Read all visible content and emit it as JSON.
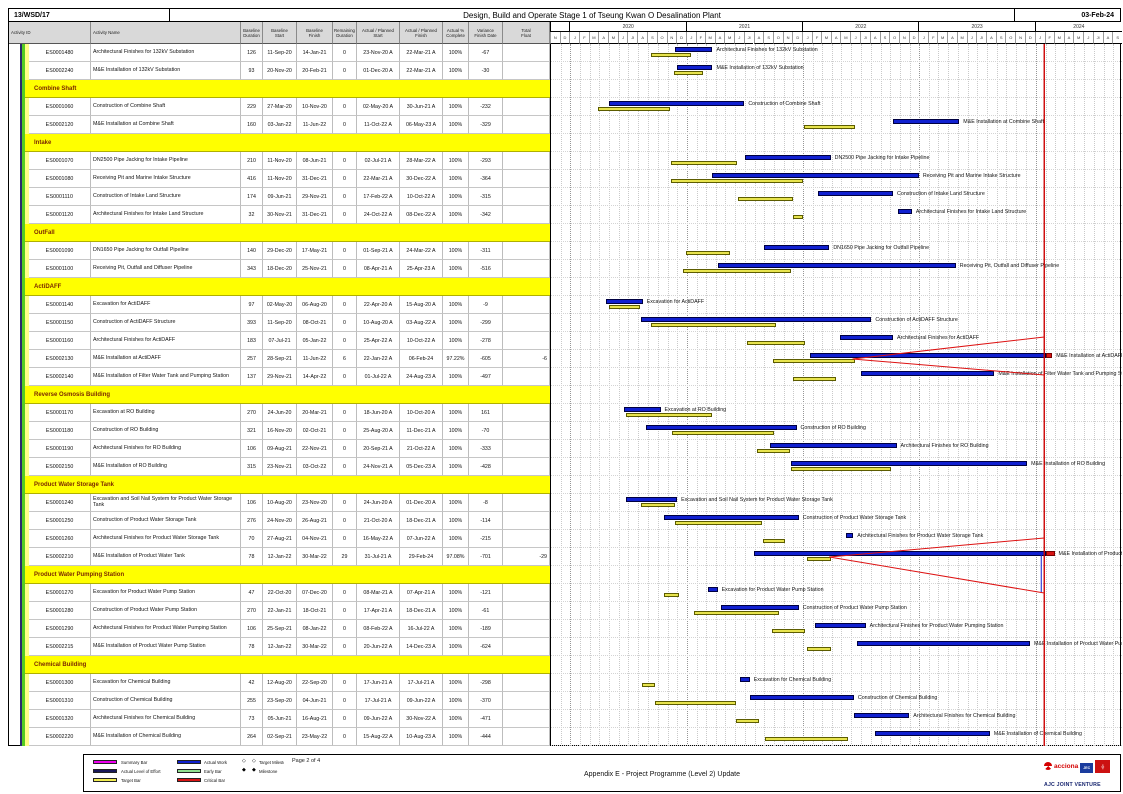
{
  "header": {
    "doc_no": "13/WSD/17",
    "title": "Design, Build and Operate Stage 1 of Tseung Kwan O Desalination Plant",
    "date": "03-Feb-24"
  },
  "columns": [
    {
      "key": "id",
      "label": "Activity ID"
    },
    {
      "key": "name",
      "label": "Activity Name"
    },
    {
      "key": "bl_dur",
      "label": "Baseline\nDuration"
    },
    {
      "key": "bl_start",
      "label": "Baseline\nStart"
    },
    {
      "key": "bl_finish",
      "label": "Baseline\nFinish"
    },
    {
      "key": "rem_dur",
      "label": "Remaining\nDuration"
    },
    {
      "key": "act_start",
      "label": "Actual / Planned\nStart"
    },
    {
      "key": "act_finish",
      "label": "Actual / Planned\nFinish"
    },
    {
      "key": "pct",
      "label": "Actual %\nComplete"
    },
    {
      "key": "variance",
      "label": "Variance\nFinish Date"
    },
    {
      "key": "total_float",
      "label": "Total\nFloat"
    }
  ],
  "sections": [
    {
      "name": "",
      "activities": [
        {
          "id": "ES0001480",
          "name": "Architectural Finishes for 132kV Substation",
          "bl_dur": "126",
          "bl_start": "11-Sep-20",
          "bl_finish": "14-Jan-21",
          "rem_dur": "0",
          "act_start": "23-Nov-20 A",
          "act_finish": "22-Mar-21 A",
          "pct": "100%",
          "variance": "-67",
          "total_float": ""
        },
        {
          "id": "ES0002240",
          "name": "M&E Installation of 132kV Substation",
          "bl_dur": "93",
          "bl_start": "20-Nov-20",
          "bl_finish": "20-Feb-21",
          "rem_dur": "0",
          "act_start": "01-Dec-20 A",
          "act_finish": "22-Mar-21 A",
          "pct": "100%",
          "variance": "-30",
          "total_float": ""
        }
      ]
    },
    {
      "name": "Combine Shaft",
      "activities": [
        {
          "id": "ES0001060",
          "name": "Construction of Combine Shaft",
          "bl_dur": "229",
          "bl_start": "27-Mar-20",
          "bl_finish": "10-Nov-20",
          "rem_dur": "0",
          "act_start": "02-May-20 A",
          "act_finish": "30-Jun-21 A",
          "pct": "100%",
          "variance": "-232",
          "total_float": ""
        },
        {
          "id": "ES0002120",
          "name": "M&E Installation at Combine Shaft",
          "bl_dur": "160",
          "bl_start": "03-Jan-22",
          "bl_finish": "11-Jun-22",
          "rem_dur": "0",
          "act_start": "11-Oct-22 A",
          "act_finish": "06-May-23 A",
          "pct": "100%",
          "variance": "-329",
          "total_float": ""
        }
      ]
    },
    {
      "name": "Intake",
      "activities": [
        {
          "id": "ES0001070",
          "name": "DN2500 Pipe Jacking for Intake Pipeline",
          "bl_dur": "210",
          "bl_start": "11-Nov-20",
          "bl_finish": "08-Jun-21",
          "rem_dur": "0",
          "act_start": "02-Jul-21 A",
          "act_finish": "28-Mar-22 A",
          "pct": "100%",
          "variance": "-293",
          "total_float": ""
        },
        {
          "id": "ES0001080",
          "name": "Receiving Pit and Marine Intake Structure",
          "bl_dur": "416",
          "bl_start": "11-Nov-20",
          "bl_finish": "31-Dec-21",
          "rem_dur": "0",
          "act_start": "22-Mar-21 A",
          "act_finish": "30-Dec-22 A",
          "pct": "100%",
          "variance": "-364",
          "total_float": ""
        },
        {
          "id": "ES0001110",
          "name": "Construction of Intake Land Structure",
          "bl_dur": "174",
          "bl_start": "09-Jun-21",
          "bl_finish": "29-Nov-21",
          "rem_dur": "0",
          "act_start": "17-Feb-22 A",
          "act_finish": "10-Oct-22 A",
          "pct": "100%",
          "variance": "-315",
          "total_float": ""
        },
        {
          "id": "ES0001120",
          "name": "Architectural Finishes for Intake Land Structure",
          "bl_dur": "32",
          "bl_start": "30-Nov-21",
          "bl_finish": "31-Dec-21",
          "rem_dur": "0",
          "act_start": "24-Oct-22 A",
          "act_finish": "08-Dec-22 A",
          "pct": "100%",
          "variance": "-342",
          "total_float": ""
        }
      ]
    },
    {
      "name": "OutFall",
      "activities": [
        {
          "id": "ES0001090",
          "name": "DN1650 Pipe Jacking for Outfall Pipeline",
          "bl_dur": "140",
          "bl_start": "29-Dec-20",
          "bl_finish": "17-May-21",
          "rem_dur": "0",
          "act_start": "01-Sep-21 A",
          "act_finish": "24-Mar-22 A",
          "pct": "100%",
          "variance": "-311",
          "total_float": ""
        },
        {
          "id": "ES0001100",
          "name": "Receiving Pit, Outfall and Diffuser Pipeline",
          "bl_dur": "343",
          "bl_start": "18-Dec-20",
          "bl_finish": "25-Nov-21",
          "rem_dur": "0",
          "act_start": "08-Apr-21 A",
          "act_finish": "25-Apr-23 A",
          "pct": "100%",
          "variance": "-516",
          "total_float": ""
        }
      ]
    },
    {
      "name": "ActiDAFF",
      "activities": [
        {
          "id": "ES0001140",
          "name": "Excavation for ActiDAFF",
          "bl_dur": "97",
          "bl_start": "02-May-20",
          "bl_finish": "06-Aug-20",
          "rem_dur": "0",
          "act_start": "22-Apr-20 A",
          "act_finish": "15-Aug-20 A",
          "pct": "100%",
          "variance": "-9",
          "total_float": ""
        },
        {
          "id": "ES0001150",
          "name": "Construction of ActiDAFF Structure",
          "bl_dur": "393",
          "bl_start": "11-Sep-20",
          "bl_finish": "08-Oct-21",
          "rem_dur": "0",
          "act_start": "10-Aug-20 A",
          "act_finish": "03-Aug-22 A",
          "pct": "100%",
          "variance": "-299",
          "total_float": ""
        },
        {
          "id": "ES0001160",
          "name": "Architectural Finishes for ActiDAFF",
          "bl_dur": "183",
          "bl_start": "07-Jul-21",
          "bl_finish": "05-Jan-22",
          "rem_dur": "0",
          "act_start": "25-Apr-22 A",
          "act_finish": "10-Oct-22 A",
          "pct": "100%",
          "variance": "-278",
          "total_float": ""
        },
        {
          "id": "ES0002130",
          "name": "M&E Installation at ActiDAFF",
          "bl_dur": "257",
          "bl_start": "28-Sep-21",
          "bl_finish": "11-Jun-22",
          "rem_dur": "6",
          "act_start": "22-Jan-22 A",
          "act_finish": "06-Feb-24",
          "pct": "97.22%",
          "variance": "-605",
          "total_float": "-6"
        },
        {
          "id": "ES0002140",
          "name": "M&E Installation of Filter Water Tank and Pumping Station",
          "bl_dur": "137",
          "bl_start": "29-Nov-21",
          "bl_finish": "14-Apr-22",
          "rem_dur": "0",
          "act_start": "01-Jul-22 A",
          "act_finish": "24-Aug-23 A",
          "pct": "100%",
          "variance": "-497",
          "total_float": ""
        }
      ]
    },
    {
      "name": "Reverse Osmosis Building",
      "activities": [
        {
          "id": "ES0001170",
          "name": "Excavation at RO Building",
          "bl_dur": "270",
          "bl_start": "24-Jun-20",
          "bl_finish": "20-Mar-21",
          "rem_dur": "0",
          "act_start": "18-Jun-20 A",
          "act_finish": "10-Oct-20 A",
          "pct": "100%",
          "variance": "161",
          "total_float": ""
        },
        {
          "id": "ES0001180",
          "name": "Construction of RO Building",
          "bl_dur": "321",
          "bl_start": "16-Nov-20",
          "bl_finish": "02-Oct-21",
          "rem_dur": "0",
          "act_start": "25-Aug-20 A",
          "act_finish": "11-Dec-21 A",
          "pct": "100%",
          "variance": "-70",
          "total_float": ""
        },
        {
          "id": "ES0001190",
          "name": "Architectural Finishes for RO Building",
          "bl_dur": "106",
          "bl_start": "09-Aug-21",
          "bl_finish": "22-Nov-21",
          "rem_dur": "0",
          "act_start": "20-Sep-21 A",
          "act_finish": "21-Oct-22 A",
          "pct": "100%",
          "variance": "-333",
          "total_float": ""
        },
        {
          "id": "ES0002150",
          "name": "M&E Installation of RO Building",
          "bl_dur": "315",
          "bl_start": "23-Nov-21",
          "bl_finish": "03-Oct-22",
          "rem_dur": "0",
          "act_start": "24-Nov-21 A",
          "act_finish": "05-Dec-23 A",
          "pct": "100%",
          "variance": "-428",
          "total_float": ""
        }
      ]
    },
    {
      "name": "Product Water Storage Tank",
      "activities": [
        {
          "id": "ES0001240",
          "name": "Excavation and Soil Nail System for Product Water Storage Tank",
          "bl_dur": "106",
          "bl_start": "10-Aug-20",
          "bl_finish": "23-Nov-20",
          "rem_dur": "0",
          "act_start": "24-Jun-20 A",
          "act_finish": "01-Dec-20 A",
          "pct": "100%",
          "variance": "-8",
          "total_float": ""
        },
        {
          "id": "ES0001250",
          "name": "Construction of Product Water Storage Tank",
          "bl_dur": "276",
          "bl_start": "24-Nov-20",
          "bl_finish": "26-Aug-21",
          "rem_dur": "0",
          "act_start": "21-Oct-20 A",
          "act_finish": "18-Dec-21 A",
          "pct": "100%",
          "variance": "-114",
          "total_float": ""
        },
        {
          "id": "ES0001260",
          "name": "Architectural Finishes for Product Water Storage Tank",
          "bl_dur": "70",
          "bl_start": "27-Aug-21",
          "bl_finish": "04-Nov-21",
          "rem_dur": "0",
          "act_start": "16-May-22 A",
          "act_finish": "07-Jun-22 A",
          "pct": "100%",
          "variance": "-215",
          "total_float": ""
        },
        {
          "id": "ES0002210",
          "name": "M&E Installation of Product Water Tank",
          "bl_dur": "78",
          "bl_start": "12-Jan-22",
          "bl_finish": "30-Mar-22",
          "rem_dur": "29",
          "act_start": "31-Jul-21 A",
          "act_finish": "29-Feb-24",
          "pct": "97.08%",
          "variance": "-701",
          "total_float": "-29"
        }
      ]
    },
    {
      "name": "Product Water Pumping Station",
      "activities": [
        {
          "id": "ES0001270",
          "name": "Excavation for Product Water Pump Station",
          "bl_dur": "47",
          "bl_start": "22-Oct-20",
          "bl_finish": "07-Dec-20",
          "rem_dur": "0",
          "act_start": "08-Mar-21 A",
          "act_finish": "07-Apr-21 A",
          "pct": "100%",
          "variance": "-121",
          "total_float": ""
        },
        {
          "id": "ES0001280",
          "name": "Construction of Product Water Pump Station",
          "bl_dur": "270",
          "bl_start": "22-Jan-21",
          "bl_finish": "18-Oct-21",
          "rem_dur": "0",
          "act_start": "17-Apr-21 A",
          "act_finish": "18-Dec-21 A",
          "pct": "100%",
          "variance": "-61",
          "total_float": ""
        },
        {
          "id": "ES0001290",
          "name": "Architectural Finishes for Product Water Pumping Station",
          "bl_dur": "106",
          "bl_start": "25-Sep-21",
          "bl_finish": "08-Jan-22",
          "rem_dur": "0",
          "act_start": "08-Feb-22 A",
          "act_finish": "16-Jul-22 A",
          "pct": "100%",
          "variance": "-189",
          "total_float": ""
        },
        {
          "id": "ES0002215",
          "name": "M&E Installation of Product Water Pump Station",
          "bl_dur": "78",
          "bl_start": "12-Jan-22",
          "bl_finish": "30-Mar-22",
          "rem_dur": "0",
          "act_start": "20-Jun-22 A",
          "act_finish": "14-Dec-23 A",
          "pct": "100%",
          "variance": "-624",
          "total_float": ""
        }
      ]
    },
    {
      "name": "Chemical Building",
      "activities": [
        {
          "id": "ES0001300",
          "name": "Excavation for Chemical Building",
          "bl_dur": "42",
          "bl_start": "12-Aug-20",
          "bl_finish": "22-Sep-20",
          "rem_dur": "0",
          "act_start": "17-Jun-21 A",
          "act_finish": "17-Jul-21 A",
          "pct": "100%",
          "variance": "-298",
          "total_float": ""
        },
        {
          "id": "ES0001310",
          "name": "Construction of Chemical Building",
          "bl_dur": "255",
          "bl_start": "23-Sep-20",
          "bl_finish": "04-Jun-21",
          "rem_dur": "0",
          "act_start": "17-Jul-21 A",
          "act_finish": "09-Jun-22 A",
          "pct": "100%",
          "variance": "-370",
          "total_float": ""
        },
        {
          "id": "ES0001320",
          "name": "Architectural Finishes for Chemical Building",
          "bl_dur": "73",
          "bl_start": "05-Jun-21",
          "bl_finish": "16-Aug-21",
          "rem_dur": "0",
          "act_start": "09-Jun-22 A",
          "act_finish": "30-Nov-22 A",
          "pct": "100%",
          "variance": "-471",
          "total_float": ""
        },
        {
          "id": "ES0002220",
          "name": "M&E Installation of Chemical Building",
          "bl_dur": "264",
          "bl_start": "02-Sep-21",
          "bl_finish": "23-May-22",
          "rem_dur": "0",
          "act_start": "15-Aug-22 A",
          "act_finish": "10-Aug-23 A",
          "pct": "100%",
          "variance": "-444",
          "total_float": ""
        }
      ]
    }
  ],
  "gantt": {
    "timeline_start": "01-Nov-19",
    "timeline_end": "01-Oct-24",
    "data_date": "03-Feb-24",
    "years": [
      "2020",
      "2021",
      "2022",
      "2023",
      "2024"
    ],
    "month_letters": [
      "J",
      "F",
      "M",
      "A",
      "M",
      "J",
      "Jl",
      "A",
      "S",
      "O",
      "N",
      "D"
    ],
    "colors": {
      "actual": "#1020d0",
      "target": "#e8e44e",
      "critical": "#d71414",
      "data_date_line": "#cc0000"
    }
  },
  "legend": {
    "col1": [
      {
        "label": "Summary Bar",
        "color": "#ee00ee"
      },
      {
        "label": "Actual Level of Effort",
        "color": "#181858"
      },
      {
        "label": "Target Bar",
        "color": "#f0ec50"
      }
    ],
    "col2": [
      {
        "label": "Actual Work",
        "color": "#1020d0",
        "diamond": "◇"
      },
      {
        "label": "Early Bar",
        "color": "#90e090",
        "diamond": "◆"
      },
      {
        "label": "Critical Bar",
        "color": "#d71414"
      }
    ],
    "col3": [
      {
        "glyph": "◇",
        "label": "Target Milestone"
      },
      {
        "glyph": "◆",
        "label": "Milestone"
      }
    ]
  },
  "footer": {
    "page_label": "Page 2 of 4",
    "title": "Appendix E - Project Programme (Level 2) Update",
    "acciona_text": "acciona",
    "jec_text": "JEC",
    "jv_name": "AJC JOINT VENTURE"
  }
}
